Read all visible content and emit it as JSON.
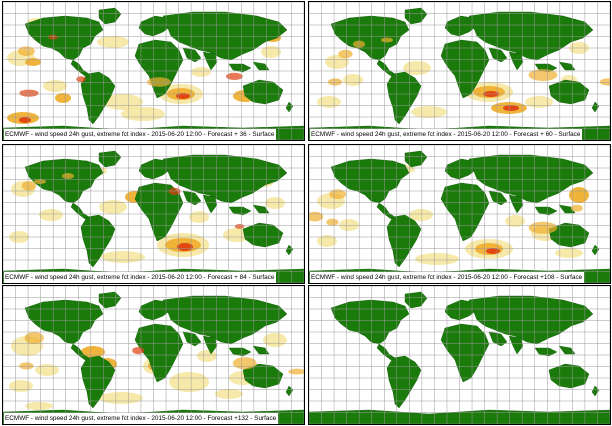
{
  "panels": [
    {
      "caption": "ECMWF - wind speed 24h gust, extreme fct index - 2015-06-20 12:00 - Forecast + 36 - Surface",
      "has_field": true
    },
    {
      "caption": "ECMWF - wind speed 24h gust, extreme fct index - 2015-06-20 12:00 - Forecast + 60 - Surface",
      "has_field": true
    },
    {
      "caption": "ECMWF - wind speed 24h gust, extreme fct index - 2015-06-20 12:00 - Forecast + 84 - Surface",
      "has_field": true
    },
    {
      "caption": "ECMWF - wind speed 24h gust, extreme fct index - 2015-06-20 12:00 - Forecast +108 - Surface",
      "has_field": true
    },
    {
      "caption": "ECMWF - wind speed 24h gust, extreme fct index - 2015-06-20 12:00 - Forecast +132 - Surface",
      "has_field": true
    },
    {
      "caption": "",
      "has_field": false
    }
  ],
  "colors": {
    "land": "#1a7a0a",
    "ocean": "#ffffff",
    "gridline": "#9a9a9a",
    "field_light": "#f6e59a",
    "field_mid": "#f0b030",
    "field_high": "#e04010",
    "field_extreme": "#c00000"
  }
}
